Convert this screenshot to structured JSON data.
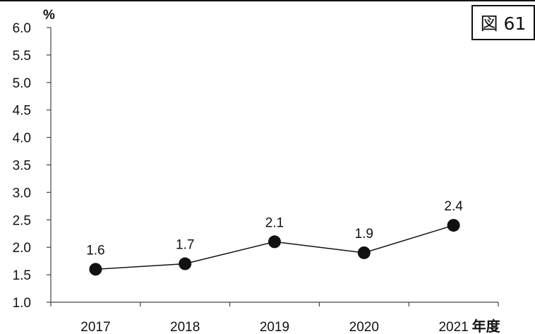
{
  "figure_label": "図 61",
  "chart_data": {
    "type": "line",
    "categories": [
      "2017",
      "2018",
      "2019",
      "2020",
      "2021"
    ],
    "x_unit": "年度",
    "y_unit": "%",
    "ylim": [
      1.0,
      6.0
    ],
    "yticks": [
      "1.0",
      "1.5",
      "2.0",
      "2.5",
      "3.0",
      "3.5",
      "4.0",
      "4.5",
      "5.0",
      "5.5",
      "6.0"
    ],
    "grid": false,
    "series": [
      {
        "values": [
          1.6,
          1.7,
          2.1,
          1.9,
          2.4
        ],
        "labels": [
          "1.6",
          "1.7",
          "2.1",
          "1.9",
          "2.4"
        ]
      }
    ],
    "colors": {
      "line": "#111111",
      "marker": "#111111",
      "axis": "#444444"
    }
  }
}
